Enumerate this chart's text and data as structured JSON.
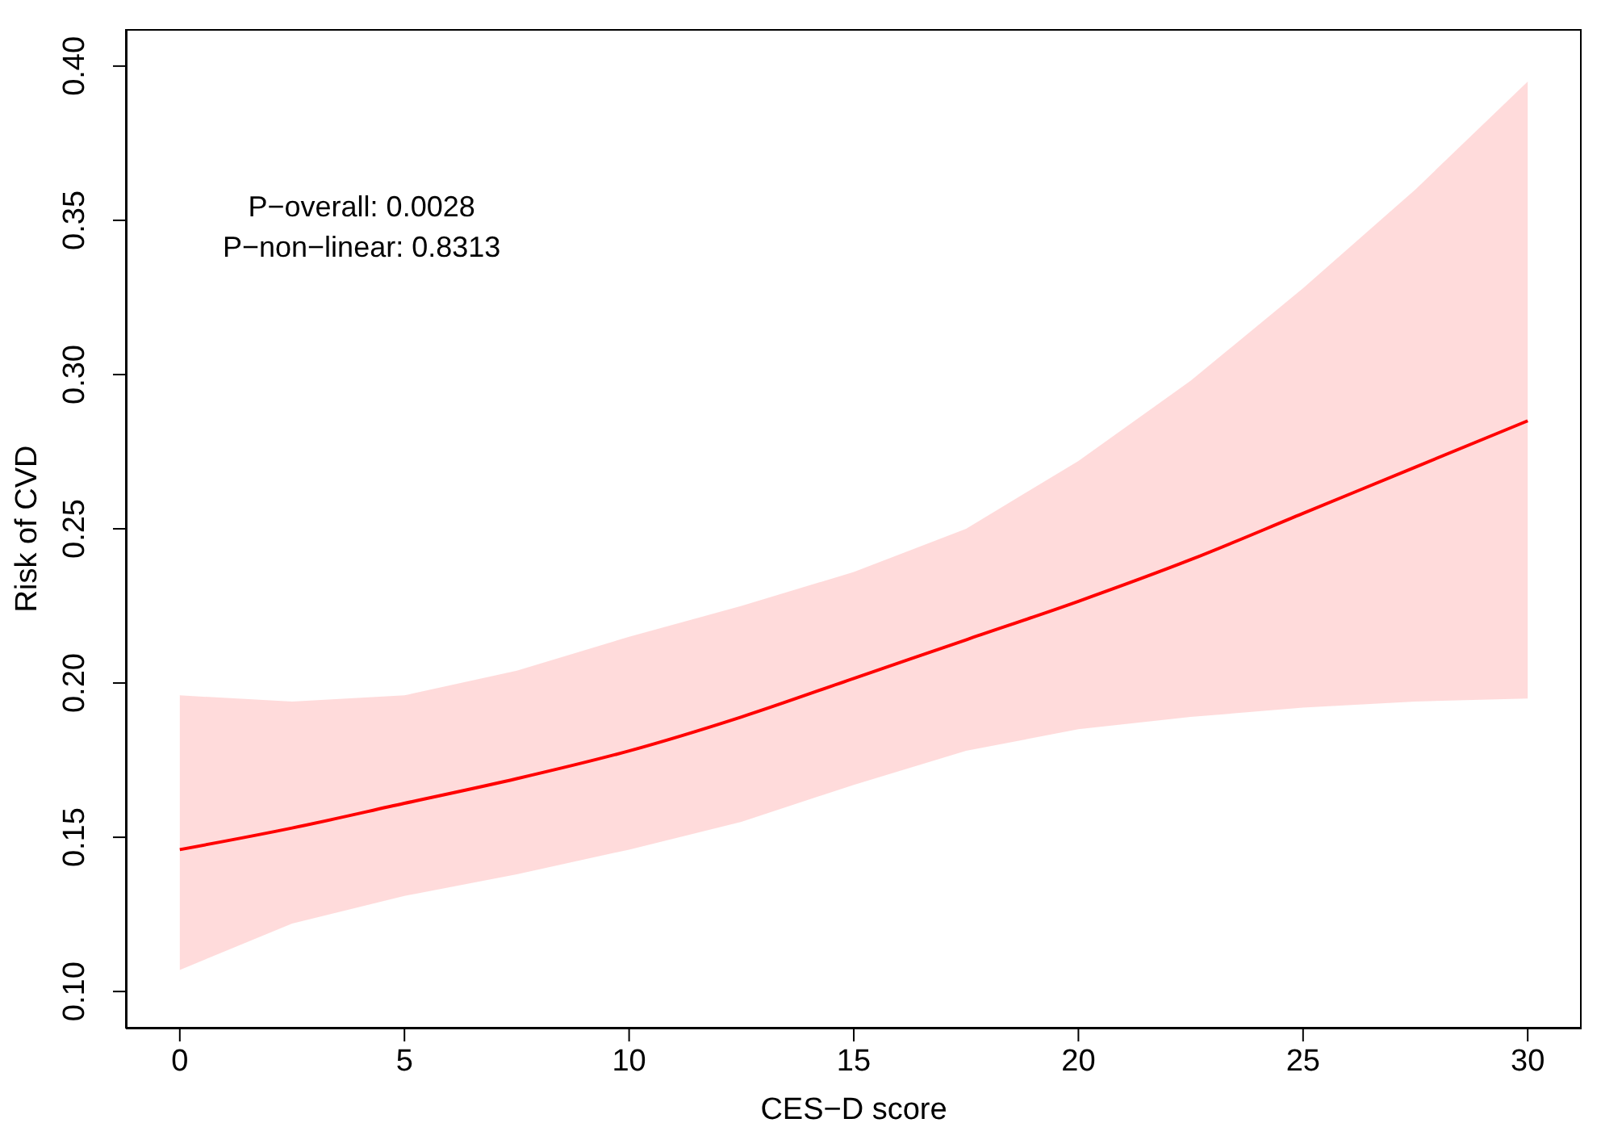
{
  "chart_data": {
    "type": "line",
    "xlabel": "CES−D score",
    "ylabel": "Risk of CVD",
    "annotations": [
      "P−overall: 0.0028",
      "P−non−linear: 0.8313"
    ],
    "x": [
      0,
      2.5,
      5,
      7.5,
      10,
      12.5,
      15,
      17.5,
      20,
      22.5,
      25,
      27.5,
      30
    ],
    "series": [
      {
        "color": "#ff0000",
        "values": [
          0.146,
          0.153,
          0.161,
          0.169,
          0.178,
          0.189,
          0.2015,
          0.214,
          0.2265,
          0.24,
          0.255,
          0.27,
          0.285
        ],
        "lower": [
          0.107,
          0.122,
          0.131,
          0.138,
          0.146,
          0.155,
          0.167,
          0.178,
          0.185,
          0.189,
          0.192,
          0.194,
          0.195
        ],
        "upper": [
          0.196,
          0.194,
          0.196,
          0.204,
          0.215,
          0.225,
          0.236,
          0.25,
          0.272,
          0.298,
          0.328,
          0.36,
          0.395
        ]
      }
    ],
    "xlim": [
      -1.2,
      31.2
    ],
    "xticks": [
      0,
      5,
      10,
      15,
      20,
      25,
      30
    ],
    "ylim": [
      0.088,
      0.412
    ],
    "yticks": [
      {
        "value": 0.1,
        "label": "0.10"
      },
      {
        "value": 0.15,
        "label": "0.15"
      },
      {
        "value": 0.2,
        "label": "0.20"
      },
      {
        "value": 0.25,
        "label": "0.25"
      },
      {
        "value": 0.3,
        "label": "0.30"
      },
      {
        "value": 0.35,
        "label": "0.35"
      },
      {
        "value": 0.4,
        "label": "0.40"
      }
    ],
    "grid": false,
    "legend": false,
    "marker": "none",
    "line_style": "solid"
  }
}
